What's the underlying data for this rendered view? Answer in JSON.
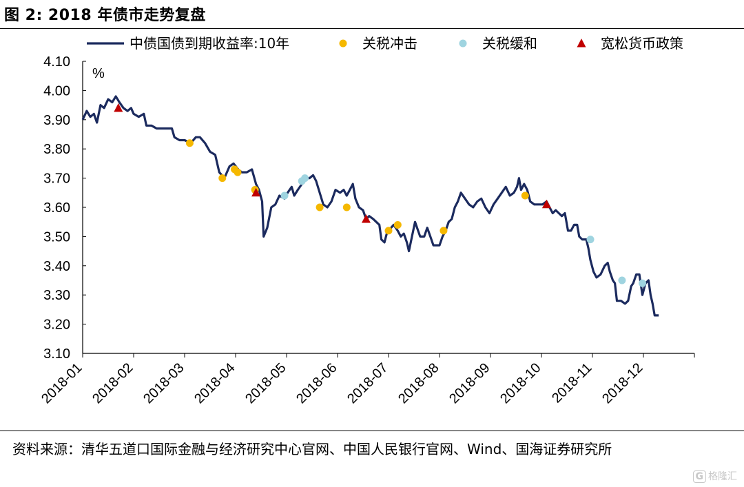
{
  "figure": {
    "title": "图 2:  2018 年债市走势复盘",
    "source": "资料来源：清华五道口国际金融与经济研究中心官网、中国人民银行官网、Wind、国海证券研究所",
    "watermark_icon": "G",
    "watermark_text": "格隆汇"
  },
  "chart_data": {
    "type": "line",
    "title": "",
    "ylabel": "%",
    "xlabel": "",
    "ylim": [
      3.1,
      4.1
    ],
    "yticks": [
      "3.10",
      "3.20",
      "3.30",
      "3.40",
      "3.50",
      "3.60",
      "3.70",
      "3.80",
      "3.90",
      "4.00",
      "4.10"
    ],
    "xticks": [
      "2018-01",
      "2018-02",
      "2018-03",
      "2018-04",
      "2018-05",
      "2018-06",
      "2018-07",
      "2018-08",
      "2018-09",
      "2018-10",
      "2018-11",
      "2018-12"
    ],
    "x_range_months": [
      0,
      12
    ],
    "legend_position": "top",
    "series": [
      {
        "name": "中债国债到期收益率:10年",
        "color": "#1b2a5e",
        "kind": "line",
        "points": [
          [
            0.0,
            3.9
          ],
          [
            0.08,
            3.93
          ],
          [
            0.15,
            3.91
          ],
          [
            0.22,
            3.92
          ],
          [
            0.28,
            3.89
          ],
          [
            0.35,
            3.95
          ],
          [
            0.42,
            3.94
          ],
          [
            0.5,
            3.97
          ],
          [
            0.58,
            3.96
          ],
          [
            0.65,
            3.98
          ],
          [
            0.72,
            3.96
          ],
          [
            0.8,
            3.94
          ],
          [
            0.88,
            3.93
          ],
          [
            0.95,
            3.94
          ],
          [
            1.0,
            3.92
          ],
          [
            1.1,
            3.91
          ],
          [
            1.2,
            3.92
          ],
          [
            1.25,
            3.88
          ],
          [
            1.35,
            3.88
          ],
          [
            1.45,
            3.87
          ],
          [
            1.55,
            3.87
          ],
          [
            1.65,
            3.87
          ],
          [
            1.75,
            3.87
          ],
          [
            1.8,
            3.84
          ],
          [
            1.9,
            3.83
          ],
          [
            2.0,
            3.83
          ],
          [
            2.12,
            3.82
          ],
          [
            2.22,
            3.84
          ],
          [
            2.3,
            3.84
          ],
          [
            2.4,
            3.82
          ],
          [
            2.5,
            3.79
          ],
          [
            2.6,
            3.78
          ],
          [
            2.68,
            3.72
          ],
          [
            2.78,
            3.7
          ],
          [
            2.88,
            3.74
          ],
          [
            2.96,
            3.75
          ],
          [
            3.05,
            3.73
          ],
          [
            3.12,
            3.72
          ],
          [
            3.22,
            3.72
          ],
          [
            3.32,
            3.73
          ],
          [
            3.4,
            3.68
          ],
          [
            3.46,
            3.66
          ],
          [
            3.52,
            3.62
          ],
          [
            3.55,
            3.5
          ],
          [
            3.62,
            3.53
          ],
          [
            3.7,
            3.6
          ],
          [
            3.78,
            3.61
          ],
          [
            3.86,
            3.64
          ],
          [
            3.96,
            3.63
          ],
          [
            4.02,
            3.65
          ],
          [
            4.1,
            3.67
          ],
          [
            4.15,
            3.64
          ],
          [
            4.22,
            3.66
          ],
          [
            4.3,
            3.68
          ],
          [
            4.38,
            3.7
          ],
          [
            4.45,
            3.7
          ],
          [
            4.52,
            3.71
          ],
          [
            4.58,
            3.69
          ],
          [
            4.65,
            3.65
          ],
          [
            4.72,
            3.61
          ],
          [
            4.8,
            3.6
          ],
          [
            4.88,
            3.62
          ],
          [
            4.96,
            3.66
          ],
          [
            5.05,
            3.65
          ],
          [
            5.12,
            3.66
          ],
          [
            5.18,
            3.64
          ],
          [
            5.24,
            3.66
          ],
          [
            5.3,
            3.68
          ],
          [
            5.35,
            3.63
          ],
          [
            5.42,
            3.6
          ],
          [
            5.5,
            3.59
          ],
          [
            5.56,
            3.56
          ],
          [
            5.62,
            3.57
          ],
          [
            5.7,
            3.56
          ],
          [
            5.76,
            3.55
          ],
          [
            5.82,
            3.54
          ],
          [
            5.86,
            3.49
          ],
          [
            5.92,
            3.48
          ],
          [
            5.98,
            3.52
          ],
          [
            6.05,
            3.53
          ],
          [
            6.1,
            3.54
          ],
          [
            6.18,
            3.52
          ],
          [
            6.24,
            3.5
          ],
          [
            6.3,
            3.51
          ],
          [
            6.36,
            3.48
          ],
          [
            6.4,
            3.45
          ],
          [
            6.46,
            3.5
          ],
          [
            6.52,
            3.55
          ],
          [
            6.58,
            3.52
          ],
          [
            6.62,
            3.5
          ],
          [
            6.7,
            3.5
          ],
          [
            6.76,
            3.53
          ],
          [
            6.82,
            3.5
          ],
          [
            6.88,
            3.47
          ],
          [
            6.94,
            3.47
          ],
          [
            7.0,
            3.47
          ],
          [
            7.06,
            3.5
          ],
          [
            7.12,
            3.52
          ],
          [
            7.18,
            3.55
          ],
          [
            7.24,
            3.56
          ],
          [
            7.3,
            3.6
          ],
          [
            7.36,
            3.62
          ],
          [
            7.42,
            3.65
          ],
          [
            7.5,
            3.63
          ],
          [
            7.58,
            3.61
          ],
          [
            7.66,
            3.6
          ],
          [
            7.74,
            3.62
          ],
          [
            7.82,
            3.63
          ],
          [
            7.9,
            3.6
          ],
          [
            7.98,
            3.58
          ],
          [
            8.06,
            3.61
          ],
          [
            8.14,
            3.63
          ],
          [
            8.22,
            3.65
          ],
          [
            8.3,
            3.67
          ],
          [
            8.38,
            3.64
          ],
          [
            8.46,
            3.65
          ],
          [
            8.52,
            3.67
          ],
          [
            8.56,
            3.7
          ],
          [
            8.6,
            3.66
          ],
          [
            8.66,
            3.68
          ],
          [
            8.72,
            3.66
          ],
          [
            8.78,
            3.62
          ],
          [
            8.86,
            3.61
          ],
          [
            8.94,
            3.61
          ],
          [
            9.02,
            3.61
          ],
          [
            9.1,
            3.62
          ],
          [
            9.16,
            3.6
          ],
          [
            9.22,
            3.58
          ],
          [
            9.28,
            3.59
          ],
          [
            9.34,
            3.58
          ],
          [
            9.4,
            3.57
          ],
          [
            9.46,
            3.58
          ],
          [
            9.52,
            3.52
          ],
          [
            9.58,
            3.52
          ],
          [
            9.64,
            3.54
          ],
          [
            9.7,
            3.54
          ],
          [
            9.74,
            3.5
          ],
          [
            9.8,
            3.49
          ],
          [
            9.88,
            3.49
          ],
          [
            9.92,
            3.46
          ],
          [
            9.96,
            3.42
          ],
          [
            10.02,
            3.38
          ],
          [
            10.08,
            3.36
          ],
          [
            10.16,
            3.37
          ],
          [
            10.24,
            3.4
          ],
          [
            10.3,
            3.41
          ],
          [
            10.34,
            3.38
          ],
          [
            10.4,
            3.35
          ],
          [
            10.44,
            3.34
          ],
          [
            10.48,
            3.28
          ],
          [
            10.56,
            3.28
          ],
          [
            10.64,
            3.27
          ],
          [
            10.7,
            3.28
          ],
          [
            10.76,
            3.33
          ],
          [
            10.8,
            3.34
          ],
          [
            10.86,
            3.37
          ],
          [
            10.92,
            3.37
          ],
          [
            10.98,
            3.3
          ],
          [
            11.04,
            3.34
          ],
          [
            11.1,
            3.35
          ],
          [
            11.14,
            3.3
          ],
          [
            11.18,
            3.27
          ],
          [
            11.22,
            3.23
          ],
          [
            11.3,
            3.23
          ]
        ]
      },
      {
        "name": "关税冲击",
        "color": "#f5b800",
        "kind": "dot",
        "points": [
          [
            2.1,
            3.82
          ],
          [
            2.74,
            3.7
          ],
          [
            2.98,
            3.73
          ],
          [
            3.04,
            3.72
          ],
          [
            3.38,
            3.66
          ],
          [
            4.65,
            3.6
          ],
          [
            5.18,
            3.6
          ],
          [
            6.0,
            3.52
          ],
          [
            6.18,
            3.54
          ],
          [
            7.08,
            3.52
          ],
          [
            8.68,
            3.64
          ]
        ]
      },
      {
        "name": "关税缓和",
        "color": "#9fd4e0",
        "kind": "dot",
        "points": [
          [
            3.96,
            3.64
          ],
          [
            4.3,
            3.69
          ],
          [
            4.36,
            3.7
          ],
          [
            9.96,
            3.49
          ],
          [
            10.58,
            3.35
          ],
          [
            10.98,
            3.34
          ]
        ]
      },
      {
        "name": "宽松货币政策",
        "color": "#c00000",
        "kind": "triangle",
        "points": [
          [
            0.7,
            3.94
          ],
          [
            3.4,
            3.65
          ],
          [
            5.56,
            3.56
          ],
          [
            9.1,
            3.61
          ]
        ]
      }
    ]
  }
}
